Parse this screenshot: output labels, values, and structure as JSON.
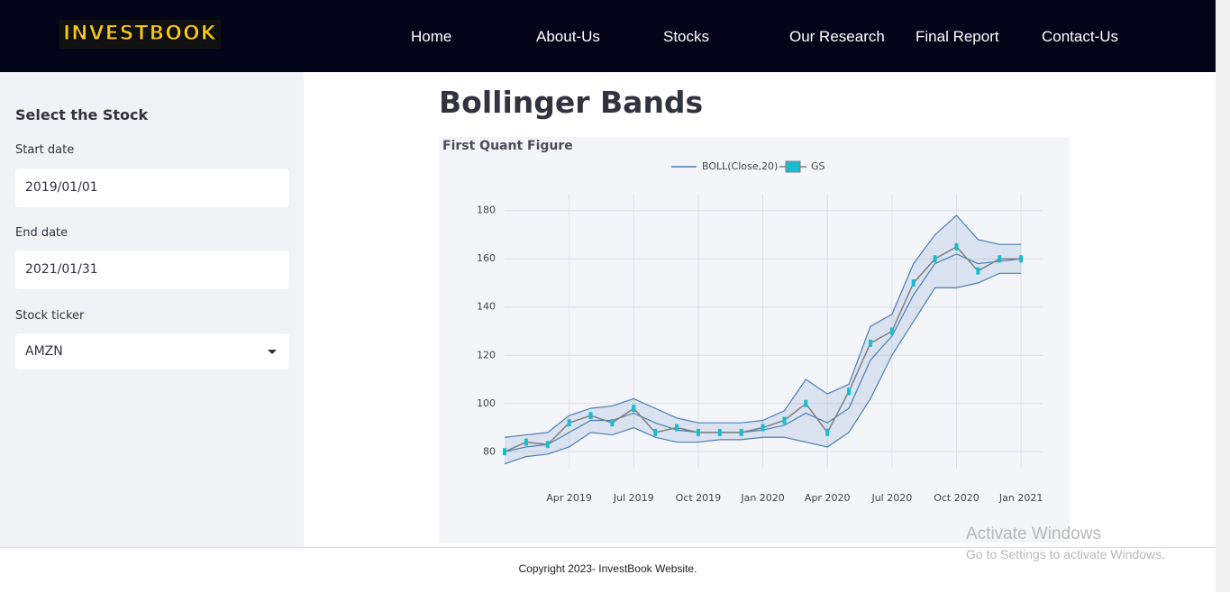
{
  "header": {
    "logo": "INVESTBOOK",
    "nav": [
      "Home",
      "About-Us",
      "Stocks",
      "Our Research",
      "Final Report",
      "Contact-Us"
    ]
  },
  "sidebar": {
    "title": "Select the Stock",
    "fields": [
      {
        "label": "Start date",
        "value": "2019/01/01"
      },
      {
        "label": "End date",
        "value": "2021/01/31"
      },
      {
        "label": "Stock ticker",
        "value": "AMZN"
      }
    ]
  },
  "main": {
    "title": "Bollinger Bands"
  },
  "chart_data": {
    "type": "bollinger",
    "title": "First Quant Figure",
    "x": [
      "2019-01",
      "2019-02",
      "2019-03",
      "2019-04",
      "2019-05",
      "2019-06",
      "2019-07",
      "2019-08",
      "2019-09",
      "2019-10",
      "2019-11",
      "2019-12",
      "2020-01",
      "2020-02",
      "2020-03",
      "2020-04",
      "2020-05",
      "2020-06",
      "2020-07",
      "2020-08",
      "2020-09",
      "2020-10",
      "2020-11",
      "2020-12",
      "2021-01"
    ],
    "series": [
      {
        "name": "BOLL(Close,20)",
        "color": "#4a7fb5",
        "values": [
          80,
          82,
          83,
          88,
          93,
          93,
          96,
          92,
          89,
          88,
          88,
          88,
          89,
          91,
          96,
          92,
          98,
          118,
          128,
          145,
          158,
          162,
          158,
          159,
          160
        ],
        "upper": [
          86,
          87,
          88,
          95,
          98,
          99,
          102,
          98,
          94,
          92,
          92,
          92,
          93,
          97,
          110,
          104,
          108,
          132,
          137,
          158,
          170,
          178,
          168,
          166,
          166
        ],
        "lower": [
          75,
          78,
          79,
          82,
          88,
          87,
          90,
          86,
          84,
          84,
          85,
          85,
          86,
          86,
          84,
          82,
          88,
          102,
          120,
          134,
          148,
          148,
          150,
          154,
          154
        ]
      },
      {
        "name": "GS",
        "color": "#17becf",
        "values": [
          80,
          84,
          83,
          92,
          95,
          92,
          98,
          88,
          90,
          88,
          88,
          88,
          90,
          93,
          100,
          88,
          105,
          125,
          130,
          150,
          160,
          165,
          155,
          160,
          160
        ]
      }
    ],
    "xlim": [
      "2019-01",
      "2021-02"
    ],
    "xticks": [
      {
        "value": "2019-04",
        "label": "Apr 2019"
      },
      {
        "value": "2019-07",
        "label": "Jul 2019"
      },
      {
        "value": "2019-10",
        "label": "Oct 2019"
      },
      {
        "value": "2020-01",
        "label": "Jan 2020"
      },
      {
        "value": "2020-04",
        "label": "Apr 2020"
      },
      {
        "value": "2020-07",
        "label": "Jul 2020"
      },
      {
        "value": "2020-10",
        "label": "Oct 2020"
      },
      {
        "value": "2021-01",
        "label": "Jan 2021"
      }
    ],
    "ylim": [
      73,
      187
    ],
    "yticks": [
      80,
      100,
      120,
      140,
      160,
      180
    ],
    "grid": true
  },
  "footer": {
    "text": "Copyright 2023- InvestBook Website."
  },
  "watermark": {
    "title": "Activate Windows",
    "text": "Go to Settings to activate Windows."
  }
}
